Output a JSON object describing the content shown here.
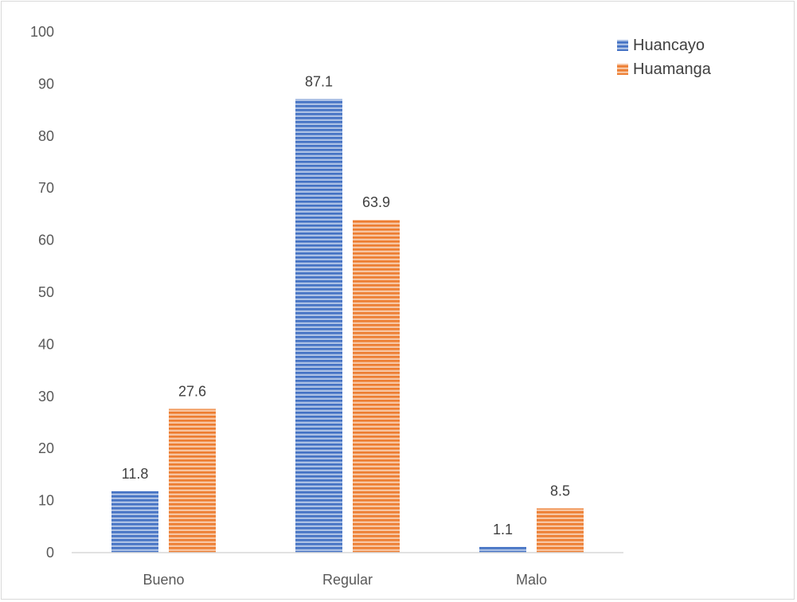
{
  "chart_data": {
    "type": "bar",
    "categories": [
      "Bueno",
      "Regular",
      "Malo"
    ],
    "series": [
      {
        "name": "Huancayo",
        "values": [
          11.8,
          87.1,
          1.1
        ],
        "color": "#4472c4"
      },
      {
        "name": "Huamanga",
        "values": [
          27.6,
          63.9,
          8.5
        ],
        "color": "#ed7d31"
      }
    ],
    "data_labels": [
      [
        "11.8",
        "87.1",
        "1.1"
      ],
      [
        "27.6",
        "63.9",
        "8.5"
      ]
    ],
    "ylim": [
      0,
      100
    ],
    "yticks": [
      "0",
      "10",
      "20",
      "30",
      "40",
      "50",
      "60",
      "70",
      "80",
      "90",
      "100"
    ],
    "grid": false,
    "legend_position": "top-right",
    "bar_fill_pattern": "horizontal-stripes"
  }
}
